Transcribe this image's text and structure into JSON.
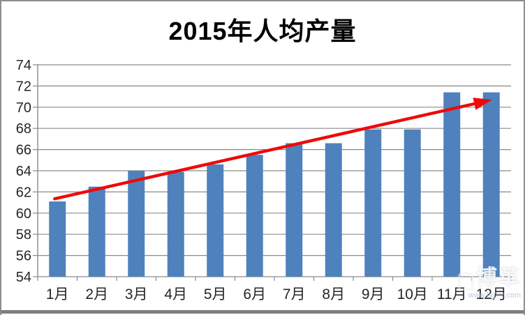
{
  "chart_data": {
    "type": "bar",
    "title": "2015年人均产量",
    "categories": [
      "1月",
      "2月",
      "3月",
      "4月",
      "5月",
      "6月",
      "7月",
      "8月",
      "9月",
      "10月",
      "11月",
      "12月"
    ],
    "values": [
      61.1,
      62.5,
      64.0,
      63.9,
      64.6,
      65.5,
      66.6,
      66.6,
      67.9,
      67.9,
      71.4,
      71.4
    ],
    "xlabel": "",
    "ylabel": "",
    "ylim": [
      54,
      74
    ],
    "ytick_step": 2,
    "grid": true,
    "legend": "none",
    "bar_color": "#4f81bd",
    "grid_color": "#8a8a8a",
    "axis_text_color": "#262626",
    "trend_arrow": {
      "color": "#ee0a0a",
      "from_index": 0,
      "from_value": 61.35,
      "to_index": 11,
      "to_value": 70.7
    }
  },
  "watermark": {
    "brand": "博革",
    "url": "www.bg***.com"
  }
}
